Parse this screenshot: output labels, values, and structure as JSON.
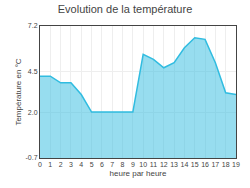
{
  "chart_data": {
    "type": "area",
    "title": "Evolution de la température",
    "xlabel": "heure par heure",
    "ylabel": "Température en °C",
    "x": [
      0,
      1,
      2,
      3,
      4,
      5,
      6,
      7,
      8,
      9,
      10,
      11,
      12,
      13,
      14,
      15,
      16,
      17,
      18,
      19
    ],
    "values": [
      4.2,
      4.2,
      3.8,
      3.8,
      3.1,
      2.05,
      2.05,
      2.05,
      2.05,
      2.05,
      5.5,
      5.2,
      4.7,
      5.0,
      5.9,
      6.5,
      6.4,
      5.0,
      3.2,
      3.1
    ],
    "color": "#30bce0",
    "xlim": [
      0,
      19
    ],
    "xticks": [
      0,
      1,
      2,
      3,
      4,
      5,
      6,
      7,
      8,
      9,
      10,
      11,
      12,
      13,
      14,
      15,
      16,
      17,
      18,
      19
    ],
    "ylim": [
      -0.7,
      7.2
    ],
    "yticks": [
      -0.7,
      {
        "value": 2.0,
        "label": "2.0"
      },
      4.5,
      {
        "value": 7.2,
        "label": "7.2"
      }
    ],
    "grid": true
  }
}
